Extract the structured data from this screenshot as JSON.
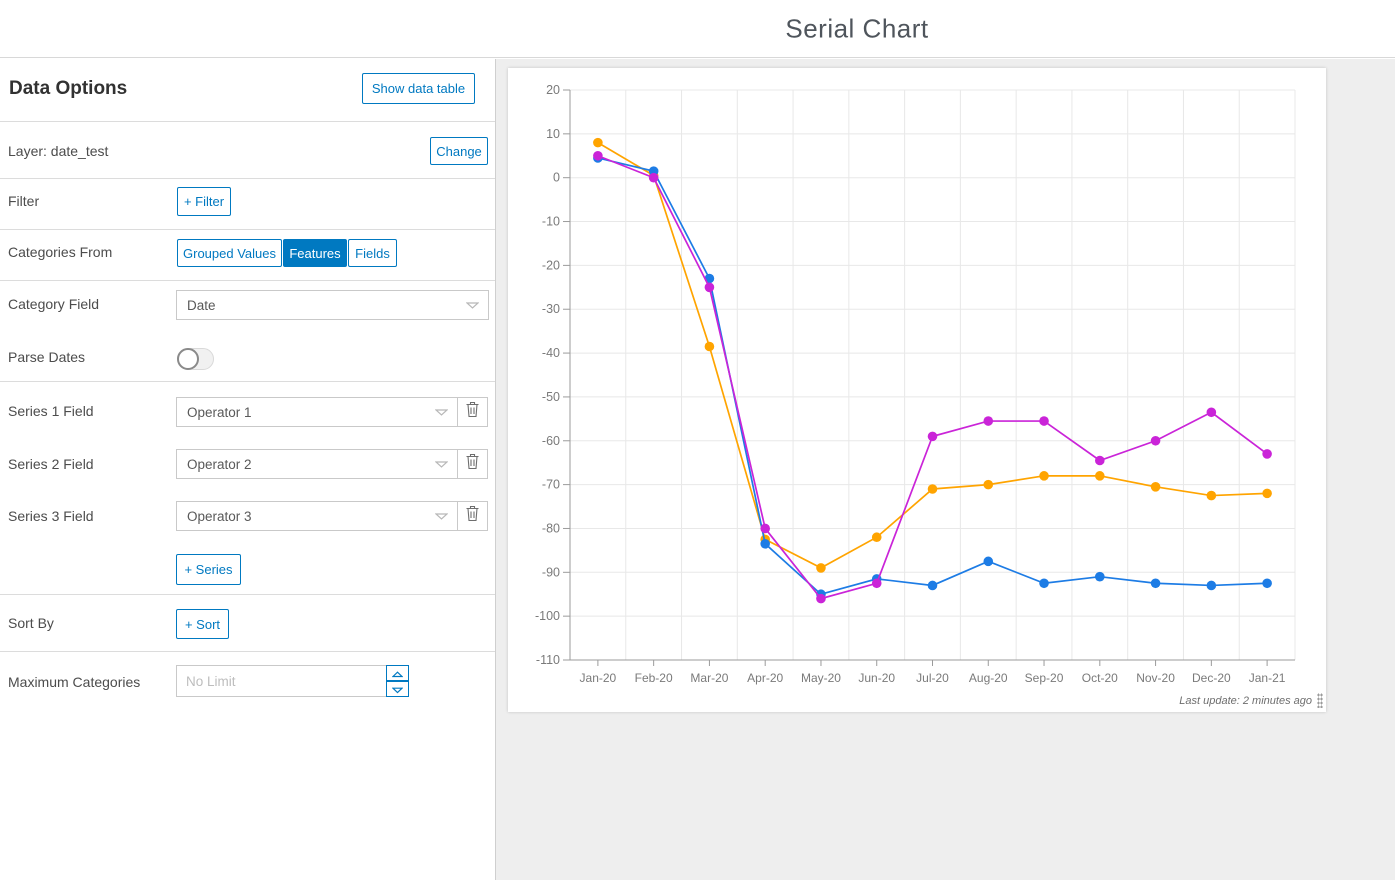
{
  "header": {
    "title": "Serial Chart"
  },
  "panel": {
    "title": "Data Options",
    "show_data_table_label": "Show data table",
    "layer_label": "Layer: date_test",
    "change_label": "Change",
    "filter_label": "Filter",
    "add_filter_label": "+ Filter",
    "categories_from_label": "Categories From",
    "tabs": [
      {
        "label": "Grouped Values",
        "selected": false
      },
      {
        "label": "Features",
        "selected": true
      },
      {
        "label": "Fields",
        "selected": false
      }
    ],
    "category_field_label": "Category Field",
    "category_field_value": "Date",
    "parse_dates_label": "Parse Dates",
    "parse_dates_on": false,
    "series_rows": [
      {
        "label": "Series 1 Field",
        "value": "Operator 1"
      },
      {
        "label": "Series 2 Field",
        "value": "Operator 2"
      },
      {
        "label": "Series 3 Field",
        "value": "Operator 3"
      }
    ],
    "add_series_label": "+ Series",
    "sort_by_label": "Sort By",
    "add_sort_label": "+ Sort",
    "max_categories_label": "Maximum Categories",
    "max_categories_placeholder": "No Limit",
    "max_categories_value": ""
  },
  "chart": {
    "last_update": "Last update: 2 minutes ago"
  },
  "chart_data": {
    "type": "line",
    "title": "Serial Chart",
    "categories": [
      "Jan-20",
      "Feb-20",
      "Mar-20",
      "Apr-20",
      "May-20",
      "Jun-20",
      "Jul-20",
      "Aug-20",
      "Sep-20",
      "Oct-20",
      "Nov-20",
      "Dec-20",
      "Jan-21"
    ],
    "series": [
      {
        "name": "Operator 1",
        "color": "#ffa400",
        "values": [
          8,
          0.5,
          -38.5,
          -82.5,
          -89,
          -82,
          -71,
          -70,
          -68,
          -68,
          -70.5,
          -72.5,
          -72
        ]
      },
      {
        "name": "Operator 2",
        "color": "#1d7ce5",
        "values": [
          4.5,
          1.5,
          -23,
          -83.5,
          -95,
          -91.5,
          -93,
          -87.5,
          -92.5,
          -91,
          -92.5,
          -93,
          -92.5
        ]
      },
      {
        "name": "Operator 3",
        "color": "#ca24d8",
        "values": [
          5,
          0,
          -25,
          -80,
          -96,
          -92.5,
          -59,
          -55.5,
          -55.5,
          -64.5,
          -60,
          -53.5,
          -63
        ]
      }
    ],
    "xlabel": "",
    "ylabel": "",
    "ylim": [
      -110,
      20
    ],
    "ytick_step": 10,
    "grid": true,
    "legend_position": "none",
    "axis_color": "#9b9b9b",
    "grid_color": "#e8e8e8",
    "tick_label_color": "#7a7a7a"
  },
  "colors": {
    "accent": "#0079c1",
    "panel_divider": "#dcdcdc",
    "right_background": "#eeeeee"
  }
}
